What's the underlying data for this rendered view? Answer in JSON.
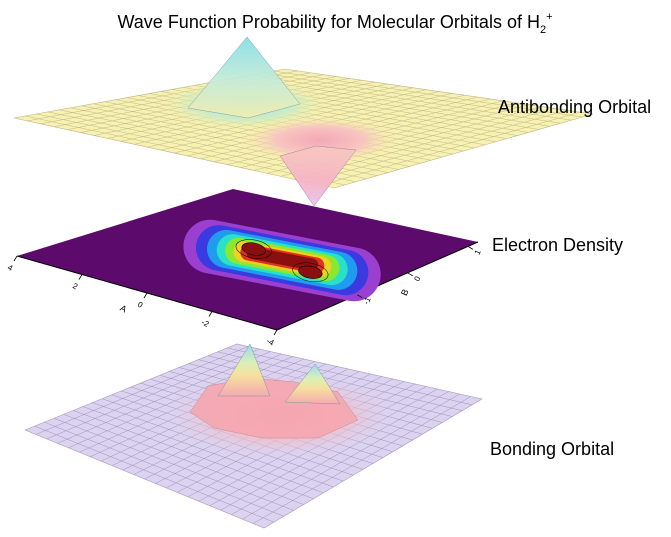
{
  "title": {
    "main": "Wave Function Probability for Molecular Orbitals of H",
    "sub": "2",
    "sup": "+"
  },
  "labels": {
    "antibonding": "Antibonding Orbital",
    "density": "Electron Density",
    "bonding": "Bonding Orbital"
  },
  "chart_data": [
    {
      "type": "surface",
      "name": "Antibonding Orbital",
      "description": "wavefunction difference of two 1s orbitals: sharp positive peak at nucleus A, sharp negative peak at nucleus B",
      "peaks": [
        {
          "sign": 1,
          "height": 1.0
        },
        {
          "sign": -1,
          "height": 1.0
        }
      ],
      "colorscale": [
        "#fbf0a0",
        "#c0ecec",
        "#f8b8b8",
        "#f8d0f0"
      ]
    },
    {
      "type": "heatmap",
      "name": "Electron Density",
      "x_ticks": [
        "4",
        "2",
        "0",
        "-2",
        "-4"
      ],
      "y_ticks": [
        "1",
        "0",
        "-1"
      ],
      "x_label": "A",
      "y_label": "B",
      "colorscale": [
        "#5e0a6e",
        "#9b3fd0",
        "#3a3ae0",
        "#1f9cf0",
        "#29e0c8",
        "#8be830",
        "#f0d020",
        "#e03020",
        "#8a1010"
      ]
    },
    {
      "type": "surface",
      "name": "Bonding Orbital",
      "description": "sum of two 1s orbitals: two positive peaks joined by a ridge",
      "peaks": [
        {
          "sign": 1,
          "height": 1.0
        },
        {
          "sign": 1,
          "height": 0.9
        }
      ],
      "colorscale": [
        "#d8d0f0",
        "#f8c8d8",
        "#f8d0a0",
        "#f0f0a0",
        "#a8e0e8"
      ]
    }
  ]
}
